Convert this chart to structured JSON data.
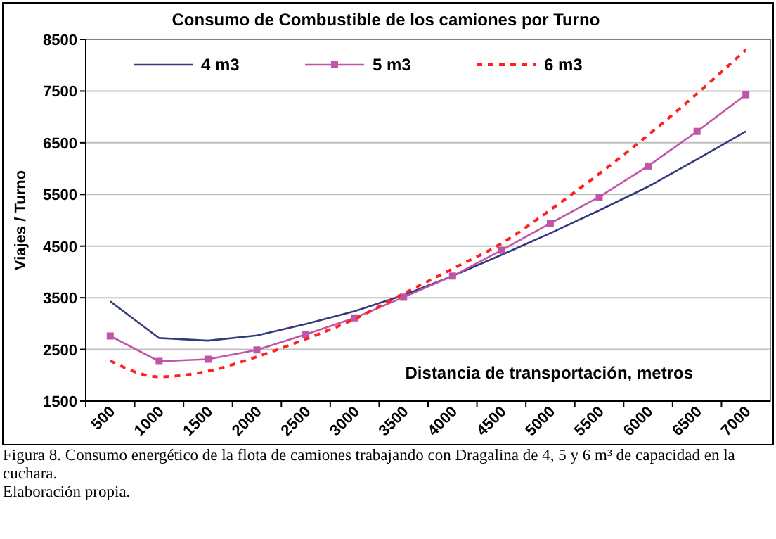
{
  "chart_data": {
    "type": "line",
    "title": "Consumo de Combustible de los camiones por Turno",
    "xlabel": "Distancia de transportación, metros",
    "ylabel": "Viajes / Turno",
    "categories": [
      "500",
      "1000",
      "1500",
      "2000",
      "2500",
      "3000",
      "3500",
      "4000",
      "4500",
      "5000",
      "5500",
      "6000",
      "6500",
      "7000"
    ],
    "series": [
      {
        "name": "4 m3",
        "color": "#333a80",
        "marker": "none",
        "line_style": "solid",
        "values": [
          3430,
          2720,
          2670,
          2770,
          2990,
          3240,
          3550,
          3920,
          4330,
          4750,
          5190,
          5650,
          6180,
          6720
        ]
      },
      {
        "name": "5 m3",
        "color": "#c054a8",
        "marker": "square",
        "line_style": "solid",
        "values": [
          2760,
          2270,
          2310,
          2490,
          2790,
          3110,
          3510,
          3920,
          4420,
          4940,
          5450,
          6050,
          6720,
          7430
        ]
      },
      {
        "name": "6 m3",
        "color": "#ff2020",
        "marker": "none",
        "line_style": "dashed",
        "values": [
          2280,
          1970,
          2080,
          2360,
          2700,
          3090,
          3580,
          4060,
          4550,
          5200,
          5900,
          6650,
          7450,
          8300
        ]
      }
    ],
    "ylim": [
      1500,
      8500
    ],
    "yticks": [
      1500,
      2500,
      3500,
      4500,
      5500,
      6500,
      7500,
      8500
    ],
    "grid": "y",
    "legend": "top left",
    "annotations": [
      "Figura 8. Consumo energético de la flota de camiones trabajando con Dragalina de 4, 5 y 6 m³ de capacidad en la cuchara.",
      "Elaboración propia."
    ]
  }
}
